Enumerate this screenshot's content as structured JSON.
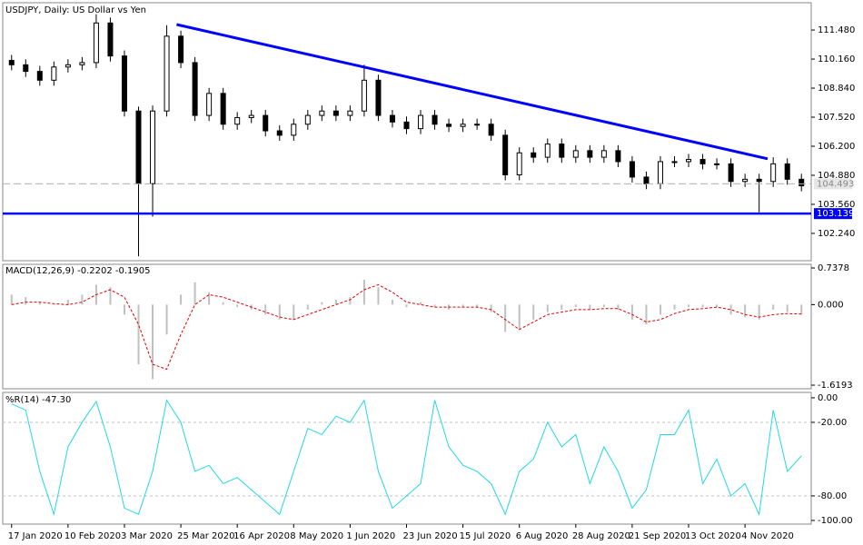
{
  "chart_data": [
    {
      "type": "candlestick",
      "title": "USDJPY, Daily:  US Dollar vs Yen",
      "categories": [
        "17 Jan 2020",
        null,
        null,
        null,
        "10 Feb 2020",
        null,
        null,
        null,
        "3 Mar 2020",
        null,
        null,
        null,
        "25 Mar 2020",
        null,
        null,
        null,
        "16 Apr 2020",
        null,
        null,
        null,
        "8 May 2020",
        null,
        null,
        null,
        "1 Jun 2020",
        null,
        null,
        null,
        "23 Jun 2020",
        null,
        null,
        null,
        "15 Jul 2020",
        null,
        null,
        null,
        "6 Aug 2020",
        null,
        null,
        null,
        "28 Aug 2020",
        null,
        null,
        null,
        "21 Sep 2020",
        null,
        null,
        null,
        "13 Oct 2020",
        null,
        null,
        null,
        "4 Nov 2020",
        null,
        null,
        null,
        null
      ],
      "open": [
        110.1,
        109.9,
        109.6,
        109.2,
        109.8,
        109.9,
        110.0,
        111.8,
        110.3,
        107.8,
        104.5,
        107.8,
        111.2,
        110.0,
        107.6,
        108.6,
        107.2,
        107.5,
        107.6,
        106.9,
        106.7,
        107.2,
        107.6,
        107.8,
        107.6,
        107.8,
        109.2,
        107.6,
        107.3,
        107.0,
        107.6,
        107.2,
        107.1,
        107.2,
        107.2,
        106.7,
        104.9,
        105.9,
        105.7,
        106.3,
        105.7,
        106.0,
        105.7,
        106.0,
        105.5,
        104.8,
        104.5,
        105.5,
        105.5,
        105.6,
        105.4,
        105.4,
        104.6,
        104.7,
        104.6,
        105.4,
        104.7
      ],
      "high": [
        110.35,
        110.15,
        109.85,
        110.05,
        110.15,
        110.25,
        112.2,
        112.05,
        110.55,
        108.0,
        108.05,
        111.7,
        111.45,
        110.25,
        108.85,
        108.85,
        107.75,
        107.85,
        107.85,
        107.15,
        107.45,
        107.85,
        108.05,
        108.05,
        108.05,
        109.9,
        109.45,
        107.85,
        107.55,
        107.85,
        107.85,
        107.45,
        107.45,
        107.45,
        107.45,
        106.95,
        106.15,
        106.15,
        106.55,
        106.55,
        106.25,
        106.25,
        106.25,
        106.25,
        105.75,
        105.05,
        105.75,
        105.75,
        105.85,
        105.85,
        105.65,
        105.65,
        104.95,
        104.95,
        105.7,
        105.65,
        104.95
      ],
      "low": [
        109.65,
        109.35,
        108.95,
        108.95,
        109.55,
        109.65,
        109.75,
        110.05,
        107.55,
        101.2,
        103.0,
        107.55,
        109.75,
        107.35,
        107.35,
        106.95,
        106.95,
        107.25,
        106.65,
        106.45,
        106.45,
        106.95,
        107.35,
        107.35,
        107.35,
        107.55,
        107.35,
        107.05,
        106.75,
        106.75,
        106.95,
        106.85,
        106.85,
        106.95,
        106.45,
        104.65,
        104.65,
        105.45,
        105.45,
        105.45,
        105.45,
        105.45,
        105.45,
        105.25,
        104.55,
        104.25,
        104.25,
        105.25,
        105.25,
        105.15,
        105.15,
        104.35,
        104.35,
        103.2,
        104.35,
        104.45,
        104.15
      ],
      "close": [
        109.9,
        109.6,
        109.2,
        109.8,
        109.9,
        110.0,
        111.8,
        110.3,
        107.8,
        104.5,
        107.8,
        111.2,
        110.0,
        107.6,
        108.6,
        107.2,
        107.5,
        107.6,
        106.9,
        106.7,
        107.2,
        107.6,
        107.8,
        107.6,
        107.8,
        109.2,
        107.6,
        107.3,
        107.0,
        107.6,
        107.2,
        107.1,
        107.2,
        107.2,
        106.7,
        104.9,
        105.9,
        105.7,
        106.3,
        105.7,
        106.0,
        105.7,
        106.0,
        105.5,
        104.8,
        104.5,
        105.5,
        105.5,
        105.6,
        105.4,
        105.4,
        104.6,
        104.7,
        104.6,
        105.4,
        104.7,
        104.4
      ],
      "color": "#000000",
      "ylim": [
        101.0,
        112.72
      ],
      "yticks": [
        {
          "value": 111.48,
          "label": "111.480"
        },
        {
          "value": 110.16,
          "label": "110.160"
        },
        {
          "value": 108.84,
          "label": "108.840"
        },
        {
          "value": 107.52,
          "label": "107.520"
        },
        {
          "value": 106.2,
          "label": "106.200"
        },
        {
          "value": 104.88,
          "label": "104.880"
        },
        {
          "value": 103.56,
          "label": "103.560"
        },
        {
          "value": 102.24,
          "label": "102.240"
        }
      ],
      "last_price": 104.493,
      "support": {
        "value": 103.139,
        "color": "#0000ff"
      },
      "trendline": {
        "x": [
          11.7,
          53.6
        ],
        "values": [
          111.73,
          105.63
        ],
        "color": "#0000ff"
      }
    },
    {
      "type": "macd",
      "title": "MACD(12,26,9) -0.2202 -0.1905",
      "histogram": {
        "color": "#c0c0c0",
        "values": [
          0.2,
          0.15,
          0.05,
          0.0,
          0.1,
          0.2,
          0.4,
          0.35,
          -0.2,
          -1.2,
          -1.5,
          -0.6,
          0.2,
          0.45,
          0.25,
          0.05,
          -0.05,
          -0.1,
          -0.2,
          -0.3,
          -0.3,
          -0.1,
          0.05,
          0.1,
          0.15,
          0.5,
          0.35,
          0.1,
          -0.05,
          0.05,
          -0.05,
          -0.1,
          -0.05,
          -0.05,
          -0.15,
          -0.55,
          -0.5,
          -0.3,
          -0.15,
          -0.1,
          -0.05,
          -0.1,
          -0.05,
          -0.1,
          -0.3,
          -0.4,
          -0.2,
          -0.1,
          -0.05,
          -0.05,
          -0.05,
          -0.2,
          -0.25,
          -0.3,
          -0.1,
          -0.15,
          -0.2
        ]
      },
      "signal": {
        "color": "#e00000",
        "values": [
          0.0,
          0.05,
          0.05,
          0.02,
          0.0,
          0.05,
          0.2,
          0.3,
          0.15,
          -0.4,
          -1.2,
          -1.3,
          -0.6,
          0.0,
          0.2,
          0.15,
          0.05,
          -0.05,
          -0.15,
          -0.25,
          -0.3,
          -0.2,
          -0.1,
          0.0,
          0.1,
          0.3,
          0.4,
          0.25,
          0.05,
          0.0,
          -0.05,
          -0.05,
          -0.05,
          -0.05,
          -0.1,
          -0.3,
          -0.5,
          -0.35,
          -0.2,
          -0.15,
          -0.1,
          -0.1,
          -0.08,
          -0.08,
          -0.2,
          -0.35,
          -0.3,
          -0.18,
          -0.1,
          -0.08,
          -0.05,
          -0.1,
          -0.2,
          -0.25,
          -0.2,
          -0.18,
          -0.19
        ]
      },
      "ylim": [
        -1.692,
        0.811
      ],
      "yticks": [
        0.7378,
        {
          "value": 0,
          "label": "0.000"
        },
        -1.6193
      ]
    },
    {
      "type": "line",
      "title": "%R(14) -47.30",
      "color": "#20d8e8",
      "values": [
        -5,
        -10,
        -60,
        -95,
        -40,
        -20,
        -3,
        -40,
        -90,
        -95,
        -60,
        -2,
        -20,
        -60,
        -55,
        -70,
        -65,
        -75,
        -85,
        -95,
        -60,
        -25,
        -30,
        -15,
        -20,
        -2,
        -60,
        -90,
        -80,
        -70,
        -2,
        -40,
        -55,
        -60,
        -70,
        -95,
        -60,
        -50,
        -20,
        -40,
        -30,
        -70,
        -40,
        -60,
        -90,
        -75,
        -30,
        -30,
        -10,
        -70,
        -50,
        -80,
        -70,
        -95,
        -10,
        -60,
        -47.3
      ],
      "ylim": [
        -103,
        4.4
      ],
      "yticks": [
        {
          "value": 0,
          "label": "0.00"
        },
        {
          "value": -20,
          "label": "-20.00"
        },
        {
          "value": -80,
          "label": "-80.00"
        },
        {
          "value": -100,
          "label": "-100.00"
        }
      ],
      "levels": [
        -20,
        -80
      ]
    }
  ]
}
